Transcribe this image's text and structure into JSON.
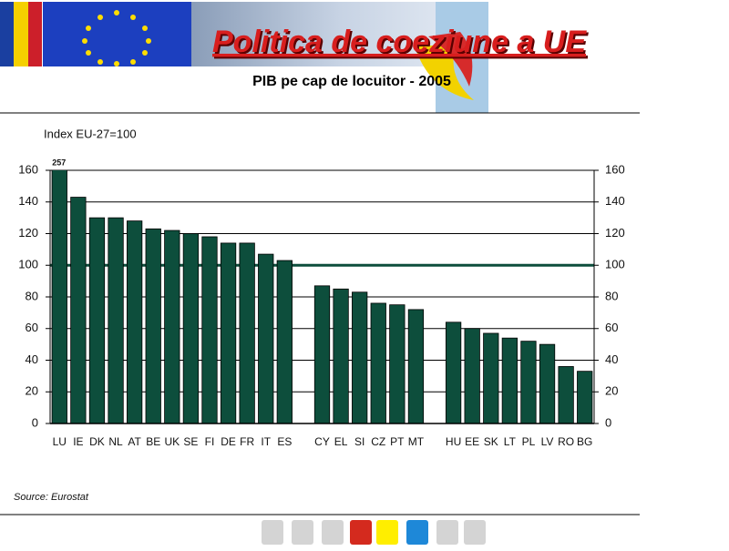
{
  "chart_data": {
    "type": "bar",
    "title": "Politica de coeziune a UE",
    "subtitle": "PIB pe cap de locuitor - 2005",
    "y_label": "Index EU-27=100",
    "source": "Source: Eurostat",
    "categories": [
      "LU",
      "IE",
      "DK",
      "NL",
      "AT",
      "BE",
      "UK",
      "SE",
      "FI",
      "DE",
      "FR",
      "IT",
      "ES",
      null,
      "CY",
      "EL",
      "SI",
      "CZ",
      "PT",
      "MT",
      null,
      "HU",
      "EE",
      "SK",
      "LT",
      "PL",
      "LV",
      "RO",
      "BG"
    ],
    "values": [
      257,
      143,
      130,
      130,
      128,
      123,
      122,
      120,
      118,
      114,
      114,
      107,
      103,
      null,
      87,
      85,
      83,
      76,
      75,
      72,
      null,
      64,
      60,
      57,
      54,
      52,
      50,
      36,
      33
    ],
    "value_labels": [
      "257",
      null,
      null,
      null,
      null,
      null,
      null,
      null,
      null,
      null,
      null,
      null,
      null,
      null,
      null,
      null,
      null,
      null,
      null,
      null,
      null,
      null,
      null,
      null,
      null,
      null,
      null,
      null,
      null
    ],
    "color": "#0d4e3c",
    "ylim": [
      0,
      160
    ],
    "yticks": [
      0,
      20,
      40,
      60,
      80,
      100,
      120,
      140,
      160
    ],
    "reference_line": 100,
    "grid": true
  }
}
